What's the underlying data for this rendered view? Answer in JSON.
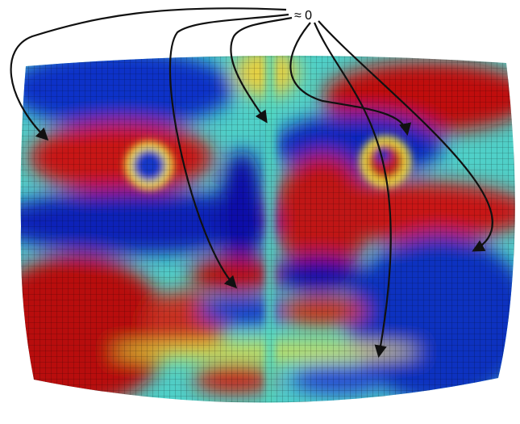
{
  "annotation": "≈ 0"
}
